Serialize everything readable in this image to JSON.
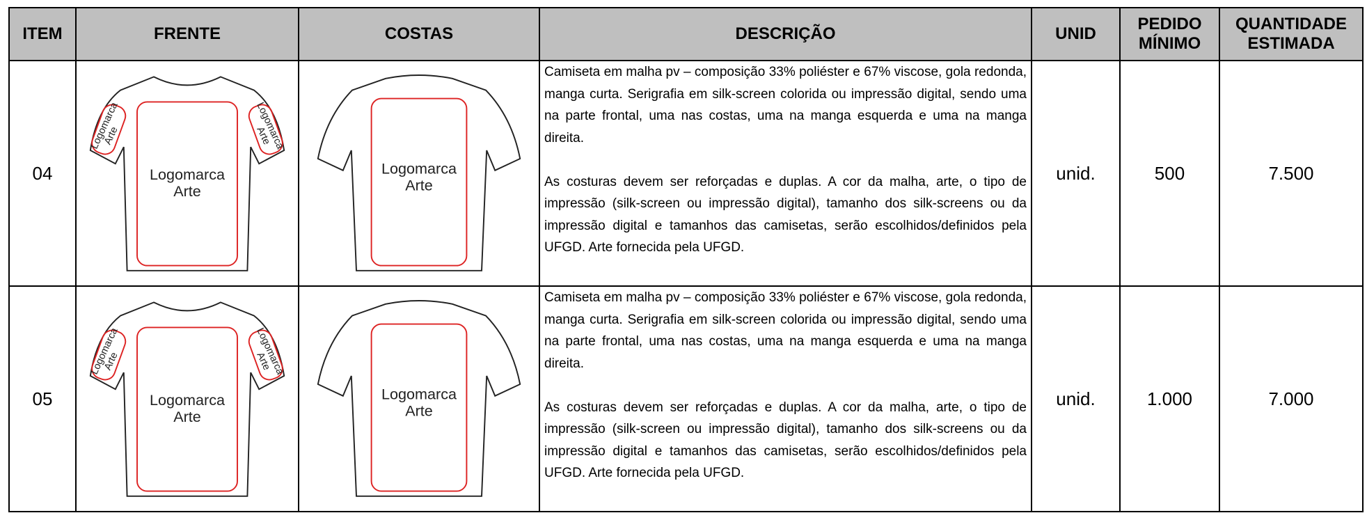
{
  "header": {
    "item": "ITEM",
    "front": "FRENTE",
    "back": "COSTAS",
    "description": "DESCRIÇÃO",
    "unit": "UNID",
    "min_order": [
      "PEDIDO",
      "MÍNIMO"
    ],
    "estimated_quantity": [
      "QUANTIDADE",
      "ESTIMADA"
    ]
  },
  "illustration": {
    "logo": "Logomarca",
    "art": "Arte"
  },
  "rows": [
    {
      "item": "04",
      "description": [
        "Camiseta em malha pv – composição 33% poliéster e 67% viscose, gola redonda, manga curta. Serigrafia em silk-screen colorida ou impressão digital, sendo uma na parte frontal, uma nas costas, uma na manga esquerda e uma na manga direita.",
        "As costuras devem ser reforçadas e duplas. A cor da malha, arte, o tipo de impressão (silk-screen ou impressão digital), tamanho dos silk-screens ou da impressão digital e tamanhos das camisetas, serão escolhidos/definidos pela UFGD. Arte fornecida pela UFGD."
      ],
      "unit": "unid.",
      "min_order": "500",
      "estimated_quantity": "7.500"
    },
    {
      "item": "05",
      "description": [
        "Camiseta em malha pv – composição 33% poliéster e 67% viscose, gola redonda, manga curta. Serigrafia em silk-screen colorida ou impressão digital, sendo uma na parte frontal, uma nas costas, uma na manga esquerda e uma na manga direita.",
        "As costuras devem ser reforçadas e duplas. A cor da malha, arte, o tipo de impressão (silk-screen ou impressão digital), tamanho dos silk-screens ou da impressão digital e tamanhos das camisetas, serão escolhidos/definidos pela UFGD. Arte fornecida pela UFGD."
      ],
      "unit": "unid.",
      "min_order": "1.000",
      "estimated_quantity": "7.000"
    }
  ]
}
